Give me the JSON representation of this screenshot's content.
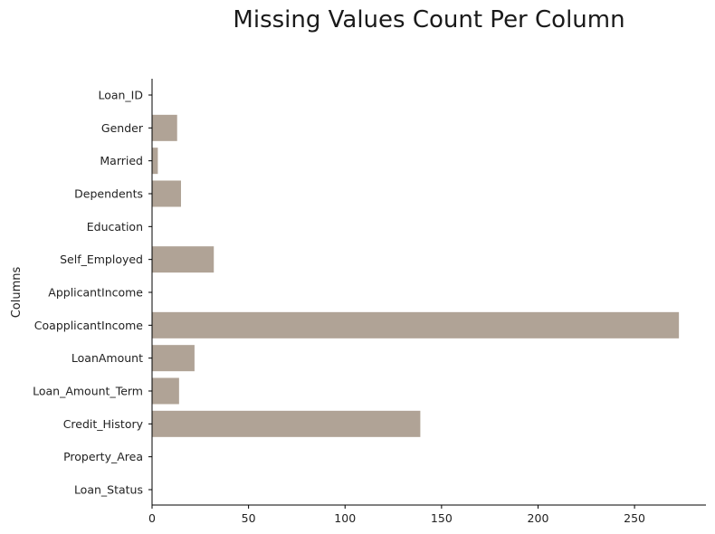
{
  "chart_data": {
    "type": "bar",
    "orientation": "horizontal",
    "title": "Missing Values Count Per Column",
    "xlabel": "",
    "ylabel": "Columns",
    "categories": [
      "Loan_ID",
      "Gender",
      "Married",
      "Dependents",
      "Education",
      "Self_Employed",
      "ApplicantIncome",
      "CoapplicantIncome",
      "LoanAmount",
      "Loan_Amount_Term",
      "Credit_History",
      "Property_Area",
      "Loan_Status"
    ],
    "values": [
      0,
      13,
      3,
      15,
      0,
      32,
      0,
      273,
      22,
      14,
      139,
      0,
      0
    ],
    "xlim": [
      0,
      287
    ],
    "xticks": [
      0,
      50,
      100,
      150,
      200,
      250
    ],
    "bar_color": "#b0a396",
    "grid": false,
    "spines": [
      "left",
      "bottom"
    ]
  }
}
